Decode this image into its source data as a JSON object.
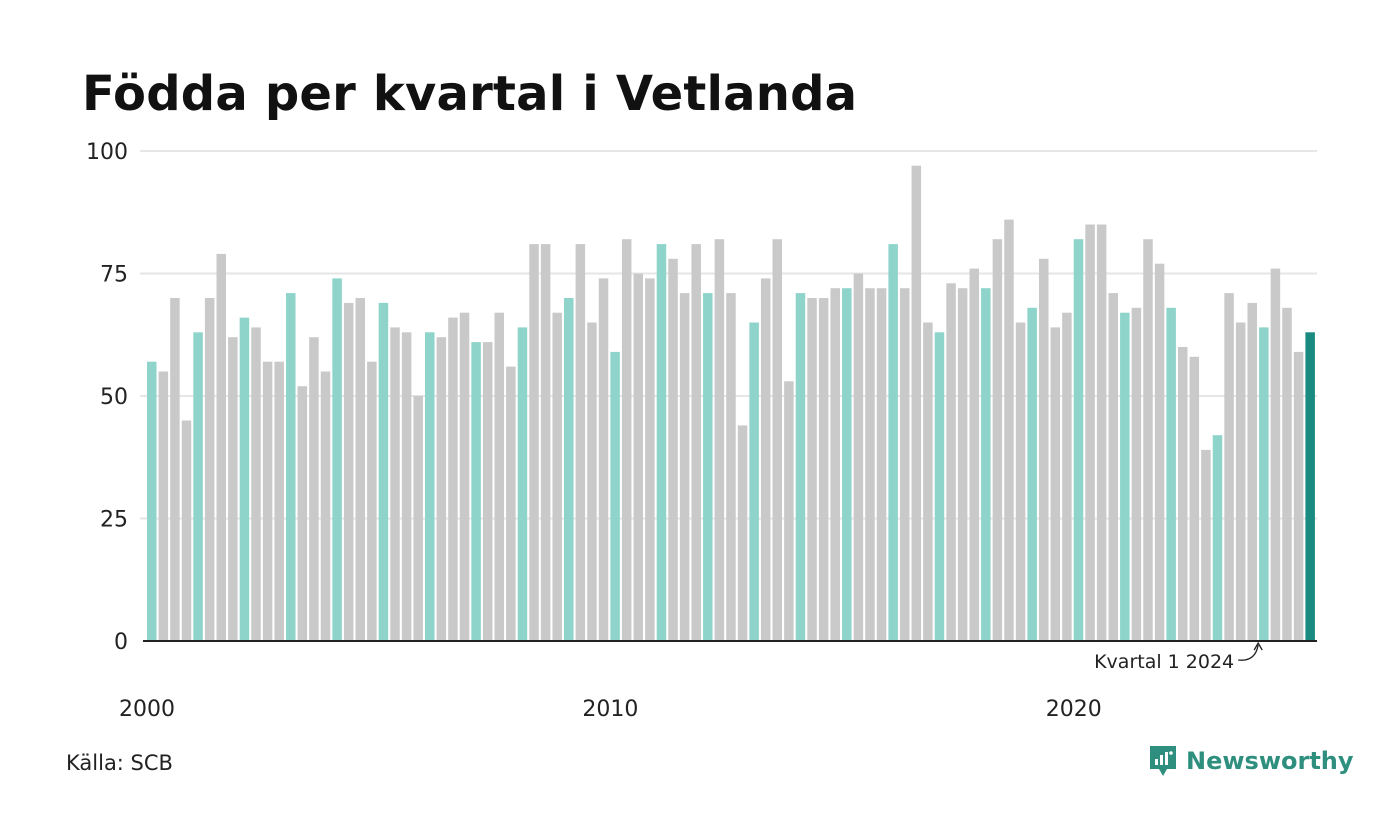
{
  "title": "Födda per kvartal i Vetlanda",
  "source": "Källa: SCB",
  "brand": "Newsworthy",
  "colors": {
    "q1": "#8ed4cb",
    "other": "#c9c9c9",
    "highlight": "#1b8a80",
    "grid": "#e6e6e6",
    "baseline": "#222222"
  },
  "chart_data": {
    "type": "bar",
    "ylim": [
      0,
      100
    ],
    "yticks": [
      0,
      25,
      50,
      75,
      100
    ],
    "xtick_labels": [
      "2000",
      "2010",
      "2020"
    ],
    "xlabel": "",
    "ylabel": "",
    "grid": true,
    "start_year": 2000,
    "annotation": "Kvartal 1 2024",
    "values": [
      57,
      55,
      70,
      45,
      63,
      70,
      79,
      62,
      66,
      64,
      57,
      57,
      71,
      52,
      62,
      55,
      74,
      69,
      70,
      57,
      69,
      64,
      63,
      50,
      63,
      62,
      66,
      67,
      61,
      61,
      67,
      56,
      64,
      81,
      81,
      67,
      70,
      81,
      65,
      74,
      59,
      82,
      75,
      74,
      81,
      78,
      71,
      81,
      71,
      82,
      71,
      44,
      65,
      74,
      82,
      53,
      71,
      70,
      70,
      72,
      72,
      75,
      72,
      72,
      81,
      72,
      97,
      65,
      63,
      73,
      72,
      76,
      72,
      82,
      86,
      65,
      68,
      78,
      64,
      67,
      82,
      85,
      85,
      71,
      67,
      68,
      82,
      77,
      68,
      60,
      58,
      39,
      42,
      71,
      65,
      69,
      64,
      76,
      68,
      59,
      63
    ]
  }
}
